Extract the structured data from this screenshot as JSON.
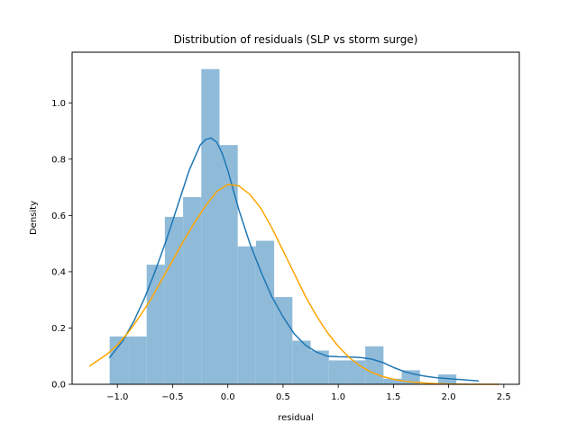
{
  "chart_data": {
    "type": "histogram",
    "title": "Distribution of residuals (SLP vs storm surge)",
    "xlabel": "residual",
    "ylabel": "Density",
    "xlim": [
      -1.41,
      2.64
    ],
    "ylim": [
      0,
      1.18
    ],
    "xticks": [
      -1.0,
      -0.5,
      0.0,
      0.5,
      1.0,
      1.5,
      2.0,
      2.5
    ],
    "xtick_labels": [
      "−1.0",
      "−0.5",
      "0.0",
      "0.5",
      "1.0",
      "1.5",
      "2.0",
      "2.5"
    ],
    "yticks": [
      0.0,
      0.2,
      0.4,
      0.6,
      0.8,
      1.0
    ],
    "ytick_labels": [
      "0.0",
      "0.2",
      "0.4",
      "0.6",
      "0.8",
      "1.0"
    ],
    "grid": false,
    "bins": {
      "color": "#8fbbd9",
      "edges": [
        -1.07,
        -0.9,
        -0.735,
        -0.57,
        -0.405,
        -0.24,
        -0.075,
        0.09,
        0.255,
        0.42,
        0.585,
        0.75,
        0.915,
        1.08,
        1.245,
        1.41,
        1.575,
        1.74,
        1.905,
        2.07,
        2.235
      ],
      "values": [
        0.17,
        0.17,
        0.425,
        0.595,
        0.665,
        1.12,
        0.85,
        0.49,
        0.51,
        0.31,
        0.155,
        0.12,
        0.085,
        0.085,
        0.135,
        0.02,
        0.05,
        0.0,
        0.035,
        0.0
      ]
    },
    "series": [
      {
        "color": "#1f77b4",
        "x": [
          -1.07,
          -0.95,
          -0.85,
          -0.75,
          -0.65,
          -0.55,
          -0.45,
          -0.35,
          -0.25,
          -0.2,
          -0.15,
          -0.1,
          -0.05,
          0.0,
          0.1,
          0.2,
          0.3,
          0.4,
          0.5,
          0.6,
          0.7,
          0.8,
          0.9,
          1.0,
          1.1,
          1.2,
          1.3,
          1.4,
          1.5,
          1.6,
          1.7,
          1.8,
          1.9,
          2.0,
          2.1,
          2.2,
          2.27
        ],
        "y": [
          0.095,
          0.155,
          0.225,
          0.31,
          0.41,
          0.52,
          0.64,
          0.76,
          0.85,
          0.87,
          0.875,
          0.86,
          0.82,
          0.76,
          0.62,
          0.5,
          0.4,
          0.31,
          0.24,
          0.18,
          0.14,
          0.115,
          0.1,
          0.098,
          0.097,
          0.095,
          0.09,
          0.078,
          0.06,
          0.045,
          0.035,
          0.028,
          0.023,
          0.02,
          0.017,
          0.014,
          0.012
        ]
      },
      {
        "color": "#ffa500",
        "x": [
          -1.25,
          -1.1,
          -1.0,
          -0.9,
          -0.8,
          -0.7,
          -0.6,
          -0.5,
          -0.4,
          -0.3,
          -0.2,
          -0.1,
          0.0,
          0.1,
          0.2,
          0.3,
          0.4,
          0.5,
          0.6,
          0.7,
          0.8,
          0.9,
          1.0,
          1.1,
          1.2,
          1.3,
          1.4,
          1.5,
          1.6,
          1.7,
          1.8,
          1.9,
          2.0,
          2.1,
          2.2,
          2.3,
          2.45
        ],
        "y": [
          0.065,
          0.105,
          0.14,
          0.185,
          0.24,
          0.3,
          0.37,
          0.44,
          0.51,
          0.575,
          0.635,
          0.685,
          0.71,
          0.705,
          0.675,
          0.625,
          0.555,
          0.475,
          0.395,
          0.315,
          0.245,
          0.185,
          0.135,
          0.095,
          0.065,
          0.043,
          0.028,
          0.018,
          0.011,
          0.007,
          0.004,
          0.002,
          0.001,
          0.0005,
          0.0002,
          0.0001,
          0.0
        ]
      }
    ]
  }
}
